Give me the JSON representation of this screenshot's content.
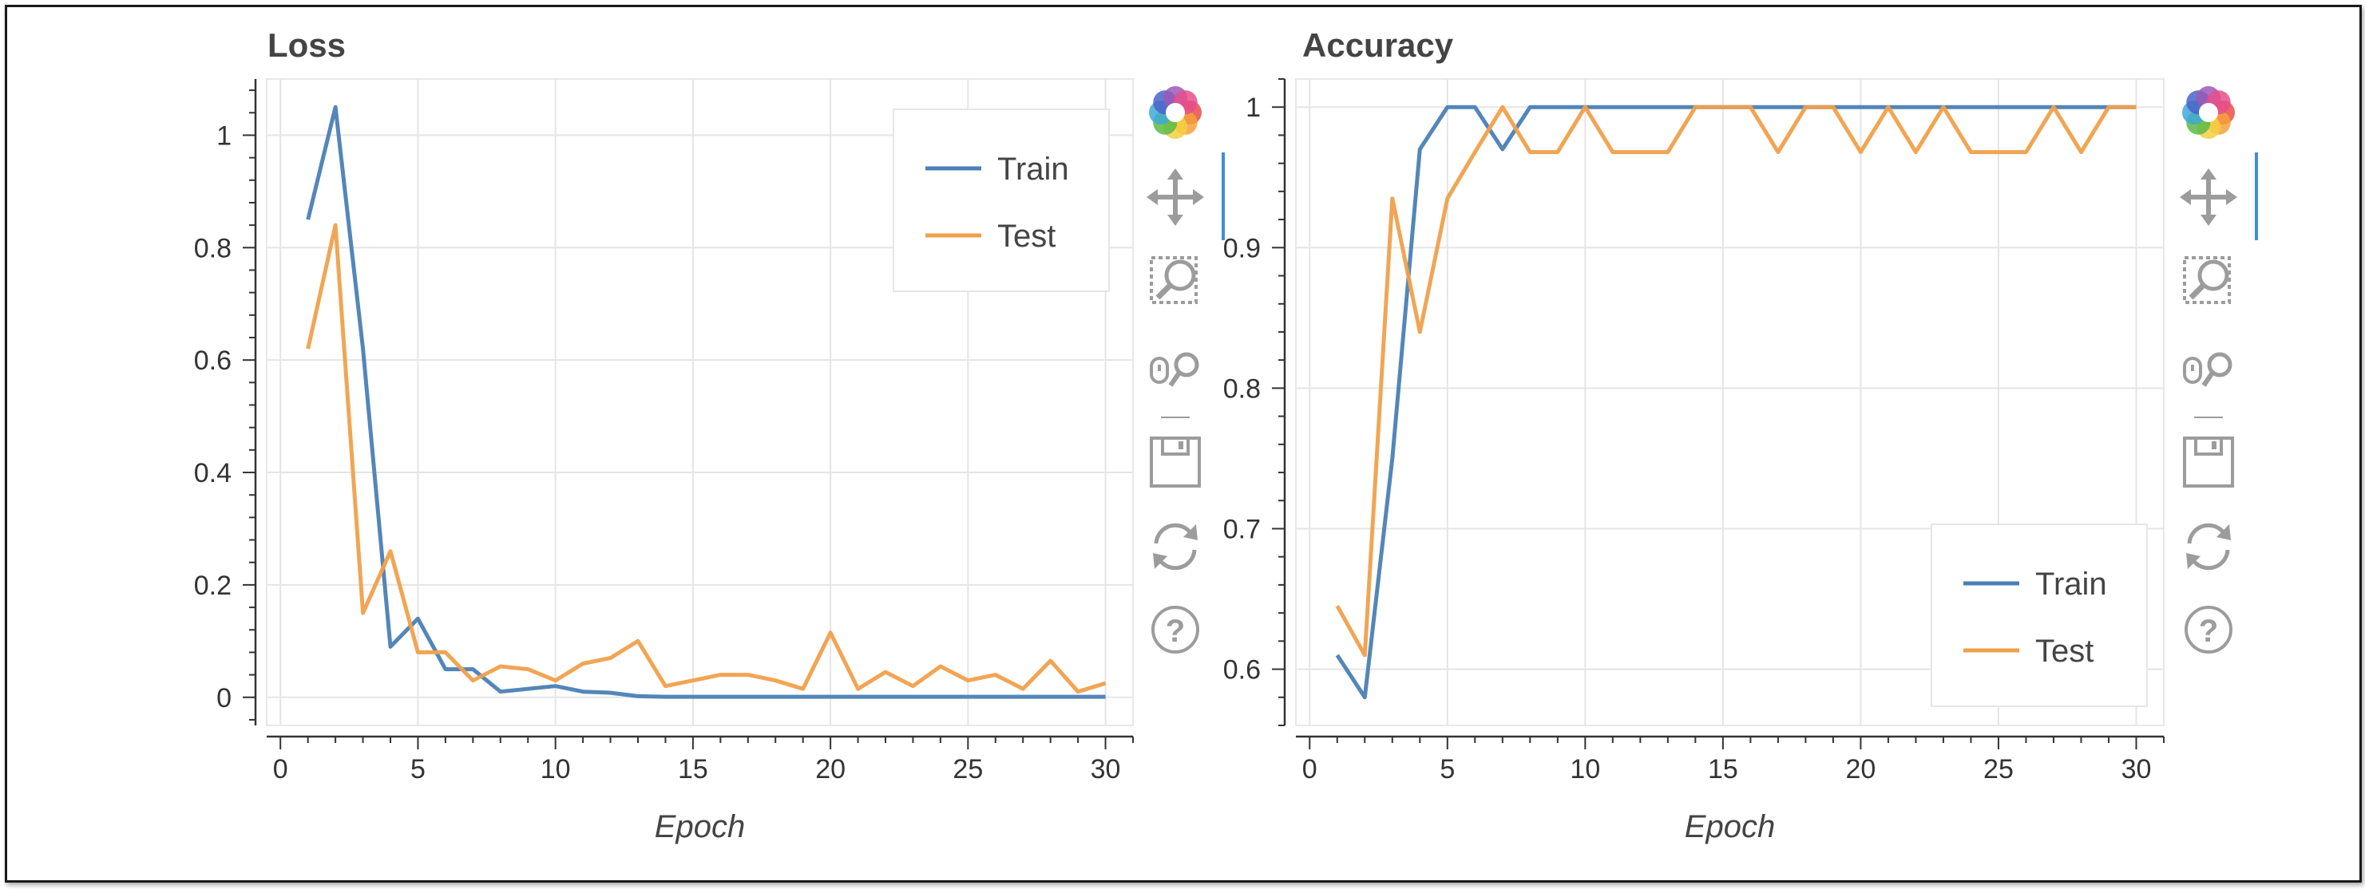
{
  "colors": {
    "train": "#4a7fb5",
    "test": "#f0a04b",
    "grid": "#e5e5e5",
    "axis": "#333333",
    "toolbar_icon": "#9c9c9c",
    "toolbar_active": "#3f8fd2"
  },
  "charts": [
    {
      "title": "Loss",
      "xlabel": "Epoch",
      "toolbar": [
        "bokeh-logo-icon",
        "pan-icon",
        "box-zoom-icon",
        "wheel-zoom-icon",
        "save-icon",
        "reset-icon",
        "help-icon"
      ]
    },
    {
      "title": "Accuracy",
      "xlabel": "Epoch",
      "toolbar": [
        "bokeh-logo-icon",
        "pan-icon",
        "box-zoom-icon",
        "wheel-zoom-icon",
        "save-icon",
        "reset-icon",
        "help-icon"
      ]
    }
  ],
  "chart_data": [
    {
      "type": "line",
      "title": "Loss",
      "xlabel": "Epoch",
      "ylabel": "",
      "xlim": [
        -0.5,
        31
      ],
      "ylim": [
        -0.05,
        1.1
      ],
      "xticks": [
        0,
        5,
        10,
        15,
        20,
        25,
        30
      ],
      "yticks": [
        0,
        0.2,
        0.4,
        0.6,
        0.8,
        1
      ],
      "ytick_labels": [
        "0",
        "0.2",
        "0.4",
        "0.6",
        "0.8",
        "1"
      ],
      "grid": true,
      "legend": "top-right",
      "x": [
        1,
        2,
        3,
        4,
        5,
        6,
        7,
        8,
        9,
        10,
        11,
        12,
        13,
        14,
        15,
        16,
        17,
        18,
        19,
        20,
        21,
        22,
        23,
        24,
        25,
        26,
        27,
        28,
        29,
        30
      ],
      "series": [
        {
          "name": "Train",
          "color": "#4a7fb5",
          "values": [
            0.85,
            1.05,
            0.62,
            0.09,
            0.14,
            0.05,
            0.05,
            0.01,
            0.015,
            0.02,
            0.01,
            0.008,
            0.002,
            0.001,
            0.001,
            0.001,
            0.001,
            0.001,
            0.001,
            0.001,
            0.001,
            0.001,
            0.001,
            0.001,
            0.001,
            0.001,
            0.001,
            0.001,
            0.001,
            0.001
          ]
        },
        {
          "name": "Test",
          "color": "#f0a04b",
          "values": [
            0.62,
            0.84,
            0.15,
            0.26,
            0.08,
            0.08,
            0.03,
            0.055,
            0.05,
            0.03,
            0.06,
            0.07,
            0.1,
            0.02,
            0.03,
            0.04,
            0.04,
            0.03,
            0.015,
            0.115,
            0.015,
            0.045,
            0.02,
            0.055,
            0.03,
            0.04,
            0.015,
            0.065,
            0.01,
            0.025
          ]
        }
      ]
    },
    {
      "type": "line",
      "title": "Accuracy",
      "xlabel": "Epoch",
      "ylabel": "",
      "xlim": [
        -0.5,
        31
      ],
      "ylim": [
        0.56,
        1.02
      ],
      "xticks": [
        0,
        5,
        10,
        15,
        20,
        25,
        30
      ],
      "yticks": [
        0.6,
        0.7,
        0.8,
        0.9,
        1
      ],
      "ytick_labels": [
        "0.6",
        "0.7",
        "0.8",
        "0.9",
        "1"
      ],
      "grid": true,
      "legend": "bottom-right",
      "x": [
        1,
        2,
        3,
        4,
        5,
        6,
        7,
        8,
        9,
        10,
        11,
        12,
        13,
        14,
        15,
        16,
        17,
        18,
        19,
        20,
        21,
        22,
        23,
        24,
        25,
        26,
        27,
        28,
        29,
        30
      ],
      "series": [
        {
          "name": "Train",
          "color": "#4a7fb5",
          "values": [
            0.61,
            0.58,
            0.75,
            0.97,
            1,
            1,
            0.97,
            1,
            1,
            1,
            1,
            1,
            1,
            1,
            1,
            1,
            1,
            1,
            1,
            1,
            1,
            1,
            1,
            1,
            1,
            1,
            1,
            1,
            1,
            1
          ]
        },
        {
          "name": "Test",
          "color": "#f0a04b",
          "values": [
            0.645,
            0.61,
            0.935,
            0.84,
            0.935,
            0.968,
            1,
            0.968,
            0.968,
            1,
            0.968,
            0.968,
            0.968,
            1,
            1,
            1,
            0.968,
            1,
            1,
            0.968,
            1,
            0.968,
            1,
            0.968,
            0.968,
            0.968,
            1,
            0.968,
            1,
            1
          ]
        }
      ]
    }
  ]
}
